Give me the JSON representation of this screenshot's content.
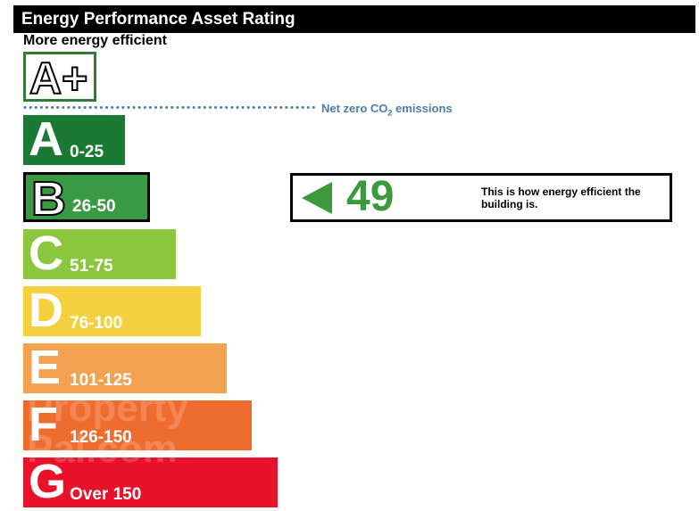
{
  "header": {
    "title": "Energy Performance Asset Rating"
  },
  "subtitle": "More energy efficient",
  "aplus": {
    "label": "A+"
  },
  "net_zero": {
    "label_prefix": "Net zero CO",
    "label_sub": "2",
    "label_suffix": " emissions",
    "color": "#4a7ea8"
  },
  "bands": [
    {
      "letter": "A",
      "range": "0-25",
      "color": "#1a7a34",
      "width_class": "a"
    },
    {
      "letter": "B",
      "range": "26-50",
      "color": "#3a9a44",
      "width_class": "b",
      "current": true
    },
    {
      "letter": "C",
      "range": "51-75",
      "color": "#8cc63f",
      "width_class": "c"
    },
    {
      "letter": "D",
      "range": "76-100",
      "color": "#f4d03f",
      "width_class": "d"
    },
    {
      "letter": "E",
      "range": "101-125",
      "color": "#f3a24f",
      "width_class": "e"
    },
    {
      "letter": "F",
      "range": "126-150",
      "color": "#ef6c2f",
      "width_class": "f"
    },
    {
      "letter": "G",
      "range": "Over 150",
      "color": "#e8132b",
      "width_class": "g"
    }
  ],
  "rating": {
    "value": "49",
    "description": "This is how energy efficient the building is.",
    "color": "#3a9a3c"
  },
  "watermark": {
    "line1": "Property",
    "line2": "Pal.com"
  }
}
